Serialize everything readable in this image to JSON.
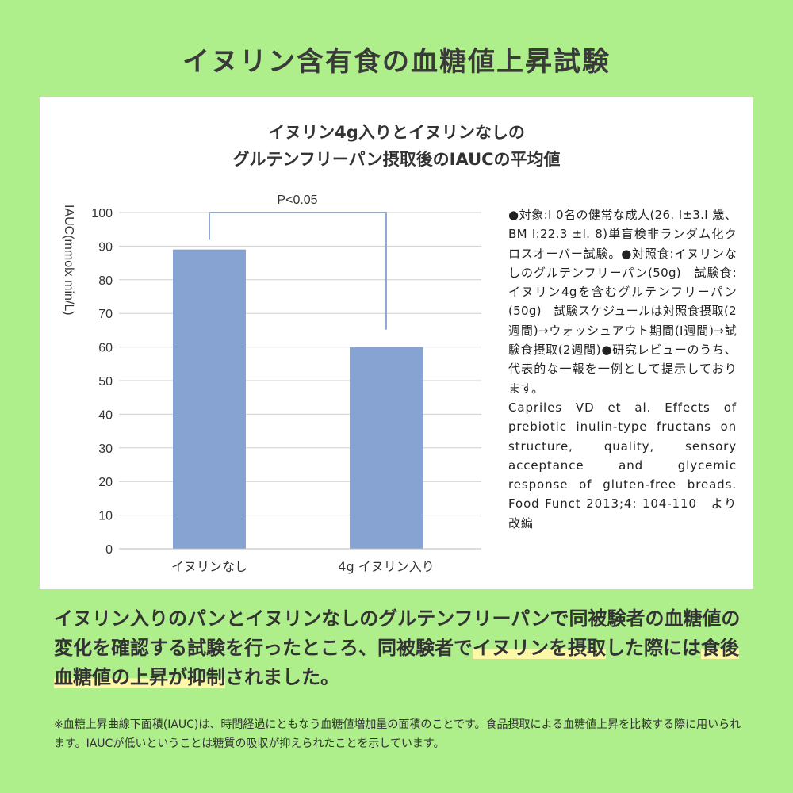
{
  "title": "イヌリン含有食の血糖値上昇試験",
  "chart_data": {
    "type": "bar",
    "title_lines": [
      "イヌリン4g入りとイヌリンなしの",
      "グルテンフリーパン摂取後のIAUCの平均値"
    ],
    "ylabel": "IAUC(mmolx min/L)",
    "xlabel": "",
    "categories": [
      "イヌリンなし",
      "4g イヌリン入り"
    ],
    "values": [
      89,
      60
    ],
    "ylim": [
      0,
      100
    ],
    "yticks": [
      0,
      10,
      20,
      30,
      40,
      50,
      60,
      70,
      80,
      90,
      100
    ],
    "grid": true,
    "bar_color": "#87a3d1",
    "annotation": "P<0.05"
  },
  "notes": {
    "study": "●対象:I 0名の健常な成人(26. I±3.I 歳、BM I:22.3 ±I. 8)単盲検非ランダム化クロスオーバー試験。●対照食:イヌリンなしのグルテンフリーパン(50g)　試験食:イヌリン4gを含むグルテンフリーパン(50g)　試験スケジュールは対照食摂取(2週間)→ウォッシュアウト期間(I週間)→試験食摂取(2週間)●研究レビューのうち、代表的な一報を一例として提示しております。",
    "citation": "Capriles VD et al. Effects of prebiotic inulin-type fructans on structure, quality, sensory acceptance and glycemic response of gluten-free breads. Food Funct 2013;4: 104-110　より改編"
  },
  "summary": {
    "part1": "イヌリン入りのパンとイヌリンなしのグルテンフリーパンで同被験者の血糖値の変化を確認する試験を行ったところ、同被験者で",
    "hl1": "イヌリンを摂取",
    "part2": "した際には",
    "hl2": "食後血糖値の上昇が抑制",
    "part3": "されました。"
  },
  "footnote": "※血糖上昇曲線下面積(IAUC)は、時間経過にともなう血糖値増加量の面積のことです。食品摂取による血糖値上昇を比較する際に用いられます。IAUCが低いということは糖質の吸収が抑えられたことを示しています。"
}
